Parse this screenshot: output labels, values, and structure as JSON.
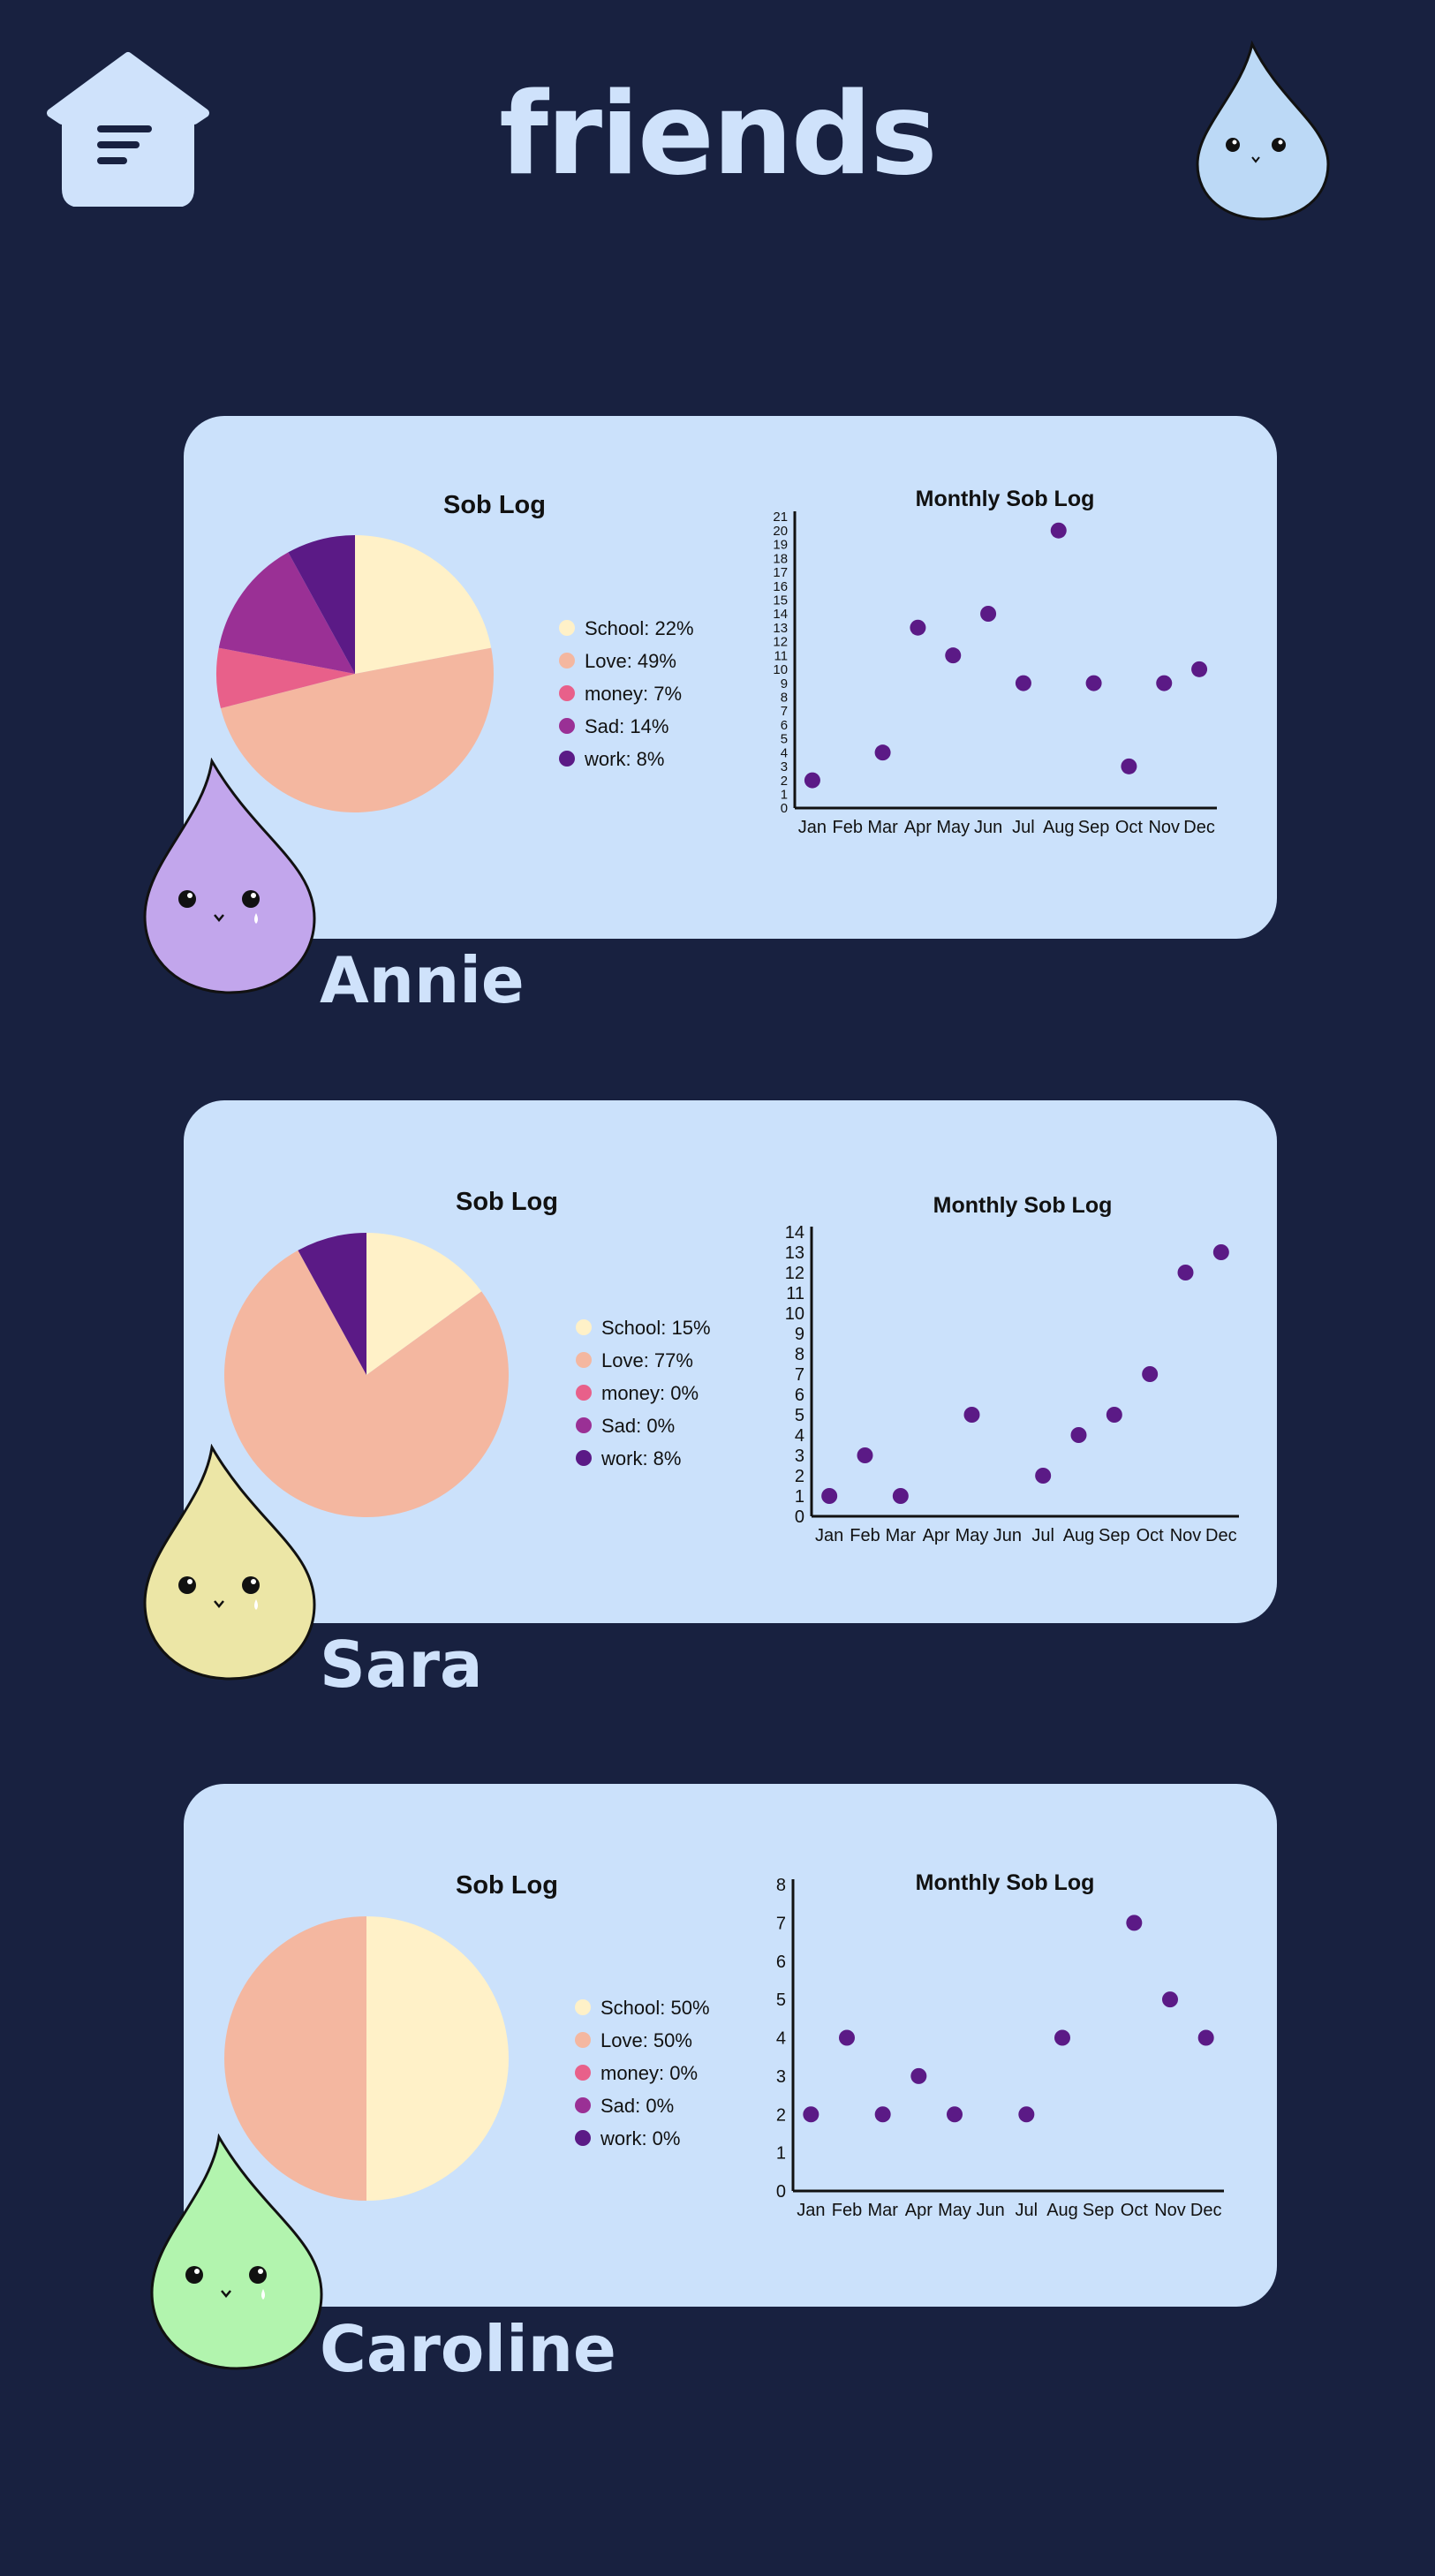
{
  "header": {
    "title": "friends",
    "home_icon": "home-menu-icon",
    "avatar_icon": "water-drop-icon"
  },
  "colors": {
    "background": "#182140",
    "card": "#cbe1fb",
    "text_light": "#cfe2fb",
    "categories": [
      "#fff1c8",
      "#f4b7a0",
      "#e8608a",
      "#9a3095",
      "#5b1a86"
    ],
    "point": "#5b1a86"
  },
  "friends": [
    {
      "name": "Annie",
      "drop_color": "#c2a6ec",
      "pie_title": "Sob Log",
      "legend": [
        "School: 22%",
        "Love: 49%",
        "money: 7%",
        "Sad: 14%",
        "work: 8%"
      ],
      "scatter_title": "Monthly Sob Log"
    },
    {
      "name": "Sara",
      "drop_color": "#ece6a6",
      "pie_title": "Sob Log",
      "legend": [
        "School: 15%",
        "Love: 77%",
        "money: 0%",
        "Sad: 0%",
        "work: 8%"
      ],
      "scatter_title": "Monthly Sob Log"
    },
    {
      "name": "Caroline",
      "drop_color": "#b2f4ae",
      "pie_title": "Sob Log",
      "legend": [
        "School: 50%",
        "Love: 50%",
        "money: 0%",
        "Sad: 0%",
        "work: 0%"
      ],
      "scatter_title": "Monthly Sob Log"
    }
  ],
  "chart_data": [
    {
      "type": "pie",
      "title": "Sob Log",
      "categories": [
        "School",
        "Love",
        "money",
        "Sad",
        "work"
      ],
      "values": [
        22,
        49,
        7,
        14,
        8
      ]
    },
    {
      "type": "scatter",
      "title": "Monthly Sob Log",
      "x": [
        "Jan",
        "Feb",
        "Mar",
        "Apr",
        "May",
        "Jun",
        "Jul",
        "Aug",
        "Sep",
        "Oct",
        "Nov",
        "Dec"
      ],
      "y": [
        2,
        null,
        4,
        13,
        11,
        14,
        9,
        20,
        9,
        3,
        9,
        10
      ],
      "ylim": [
        0,
        21
      ],
      "yticks_step": 1
    },
    {
      "type": "pie",
      "title": "Sob Log",
      "categories": [
        "School",
        "Love",
        "money",
        "Sad",
        "work"
      ],
      "values": [
        15,
        77,
        0,
        0,
        8
      ]
    },
    {
      "type": "scatter",
      "title": "Monthly Sob Log",
      "x": [
        "Jan",
        "Feb",
        "Mar",
        "Apr",
        "May",
        "Jun",
        "Jul",
        "Aug",
        "Sep",
        "Oct",
        "Nov",
        "Dec"
      ],
      "y": [
        1,
        3,
        1,
        null,
        5,
        null,
        2,
        4,
        5,
        7,
        12,
        13
      ],
      "ylim": [
        0,
        14
      ],
      "yticks_step": 1
    },
    {
      "type": "pie",
      "title": "Sob Log",
      "categories": [
        "School",
        "Love",
        "money",
        "Sad",
        "work"
      ],
      "values": [
        50,
        50,
        0,
        0,
        0
      ]
    },
    {
      "type": "scatter",
      "title": "Monthly Sob Log",
      "x": [
        "Jan",
        "Feb",
        "Mar",
        "Apr",
        "May",
        "Jun",
        "Jul",
        "Aug",
        "Sep",
        "Oct",
        "Nov",
        "Dec"
      ],
      "y": [
        2,
        4,
        2,
        3,
        2,
        null,
        2,
        4,
        null,
        7,
        5,
        4
      ],
      "ylim": [
        0,
        8
      ],
      "yticks_step": 1
    }
  ]
}
